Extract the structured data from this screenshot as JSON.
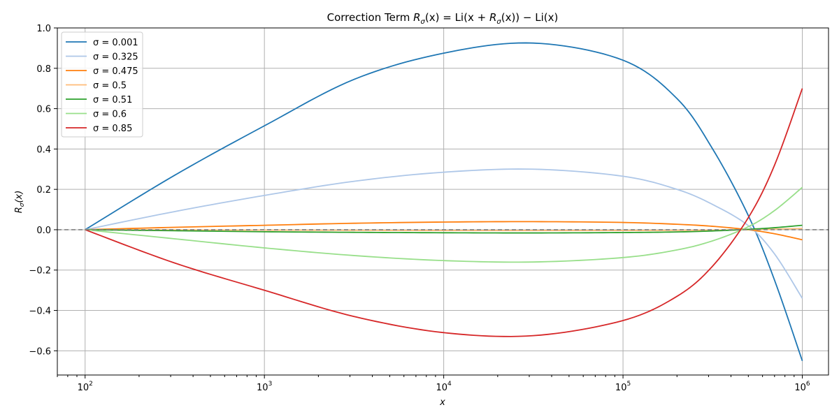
{
  "chart_data": {
    "type": "line",
    "title": "Correction Term R_σ(x) = Li(x + R_σ(x)) − Li(x)",
    "title_parts": {
      "a": "Correction Term ",
      "r": "R",
      "sub": "σ",
      "b": "(x) = Li(x + ",
      "c": "(x)) − Li(x)"
    },
    "xlabel": "x",
    "ylabel_parts": {
      "r": "R",
      "sub": "σ",
      "rest": "(x)"
    },
    "xscale": "log",
    "xlim": [
      70,
      1400000
    ],
    "ylim": [
      -0.72,
      1.0
    ],
    "x_ticks": [
      {
        "value": 100,
        "base": "10",
        "exp": "2"
      },
      {
        "value": 1000,
        "base": "10",
        "exp": "3"
      },
      {
        "value": 10000,
        "base": "10",
        "exp": "4"
      },
      {
        "value": 100000,
        "base": "10",
        "exp": "5"
      },
      {
        "value": 1000000,
        "base": "10",
        "exp": "6"
      }
    ],
    "y_ticks": [
      {
        "value": 1.0,
        "label": "1.0"
      },
      {
        "value": 0.8,
        "label": "0.8"
      },
      {
        "value": 0.6,
        "label": "0.6"
      },
      {
        "value": 0.4,
        "label": "0.4"
      },
      {
        "value": 0.2,
        "label": "0.2"
      },
      {
        "value": 0.0,
        "label": "0.0"
      },
      {
        "value": -0.2,
        "label": "−0.2"
      },
      {
        "value": -0.4,
        "label": "−0.4"
      },
      {
        "value": -0.6,
        "label": "−0.6"
      }
    ],
    "grid": true,
    "legend": "top-left",
    "reference_line": {
      "y": 0,
      "style": "dashed",
      "color": "#808080"
    },
    "x": [
      100,
      316,
      1000,
      3162,
      10000,
      31623,
      100000,
      200000,
      316228,
      500000,
      700000,
      1000000
    ],
    "series": [
      {
        "name": "σ = 0.001",
        "color": "#1f77b4",
        "values": [
          0.0,
          0.27,
          0.515,
          0.745,
          0.875,
          0.925,
          0.84,
          0.65,
          0.4,
          0.07,
          -0.25,
          -0.65
        ]
      },
      {
        "name": "σ = 0.325",
        "color": "#aec7e8",
        "values": [
          0.0,
          0.09,
          0.17,
          0.24,
          0.285,
          0.3,
          0.265,
          0.2,
          0.125,
          0.02,
          -0.12,
          -0.34
        ]
      },
      {
        "name": "σ = 0.475",
        "color": "#ff7f0e",
        "values": [
          0.0,
          0.012,
          0.022,
          0.032,
          0.038,
          0.04,
          0.036,
          0.027,
          0.017,
          0.0,
          -0.02,
          -0.05
        ]
      },
      {
        "name": "σ = 0.5",
        "color": "#ffbb78",
        "values": [
          0.0,
          -0.001,
          -0.002,
          -0.003,
          -0.004,
          -0.004,
          -0.004,
          -0.003,
          -0.002,
          0.0,
          0.003,
          0.006
        ]
      },
      {
        "name": "σ = 0.51",
        "color": "#2ca02c",
        "values": [
          0.0,
          -0.005,
          -0.01,
          -0.013,
          -0.015,
          -0.016,
          -0.014,
          -0.011,
          -0.006,
          0.002,
          0.01,
          0.022
        ]
      },
      {
        "name": "σ = 0.6",
        "color": "#98df8a",
        "values": [
          0.0,
          -0.045,
          -0.09,
          -0.128,
          -0.153,
          -0.16,
          -0.138,
          -0.1,
          -0.055,
          0.015,
          0.095,
          0.21
        ]
      },
      {
        "name": "σ = 0.85",
        "color": "#d62728",
        "values": [
          0.0,
          -0.165,
          -0.3,
          -0.43,
          -0.51,
          -0.525,
          -0.45,
          -0.33,
          -0.18,
          0.06,
          0.32,
          0.7
        ]
      }
    ]
  }
}
